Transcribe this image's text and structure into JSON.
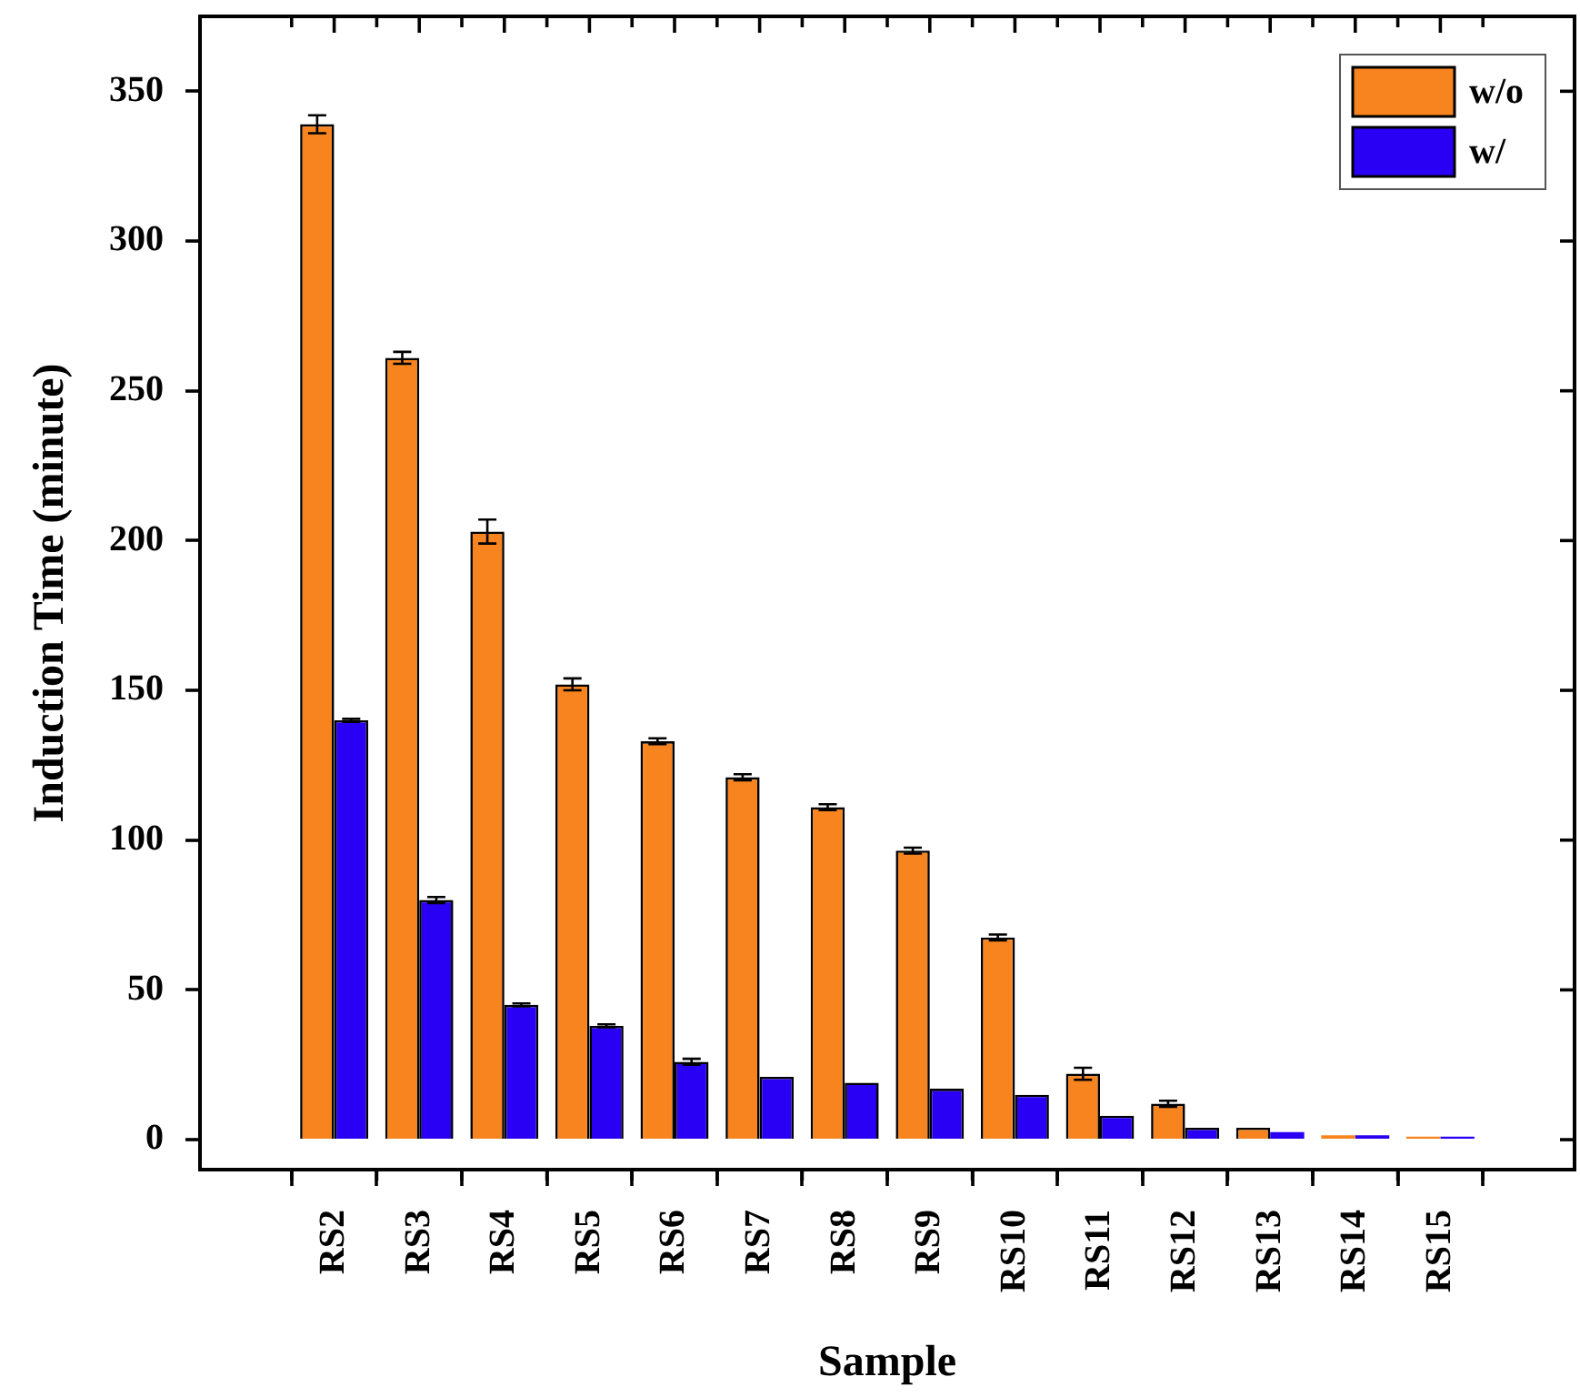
{
  "chart_data": {
    "type": "bar",
    "xlabel": "Sample",
    "ylabel": "Induction Time (minute)",
    "categories": [
      "RS2",
      "RS3",
      "RS4",
      "RS5",
      "RS6",
      "RS7",
      "RS8",
      "RS9",
      "RS10",
      "RS11",
      "RS12",
      "RS13",
      "RS14",
      "RS15"
    ],
    "series": [
      {
        "name": "w/o",
        "color": "#f7841e",
        "values": [
          339,
          261,
          203,
          152,
          133,
          121,
          111,
          96.5,
          67.5,
          22,
          12,
          4,
          1.5,
          1
        ],
        "errors": [
          3,
          2,
          4,
          2,
          1,
          1,
          1,
          1,
          1,
          2,
          1,
          null,
          null,
          null
        ]
      },
      {
        "name": "w/",
        "color": "#2a00f5",
        "values": [
          140,
          80,
          45,
          38,
          26,
          21,
          19,
          17,
          15,
          8,
          4,
          2.5,
          1.5,
          1
        ],
        "errors": [
          0.5,
          1,
          0.5,
          0.5,
          1,
          null,
          null,
          null,
          null,
          null,
          null,
          null,
          null,
          null
        ]
      }
    ],
    "ylim": [
      -10,
      375
    ],
    "yticks": [
      0,
      50,
      100,
      150,
      200,
      250,
      300,
      350
    ],
    "legend": "top right",
    "grid": false
  }
}
